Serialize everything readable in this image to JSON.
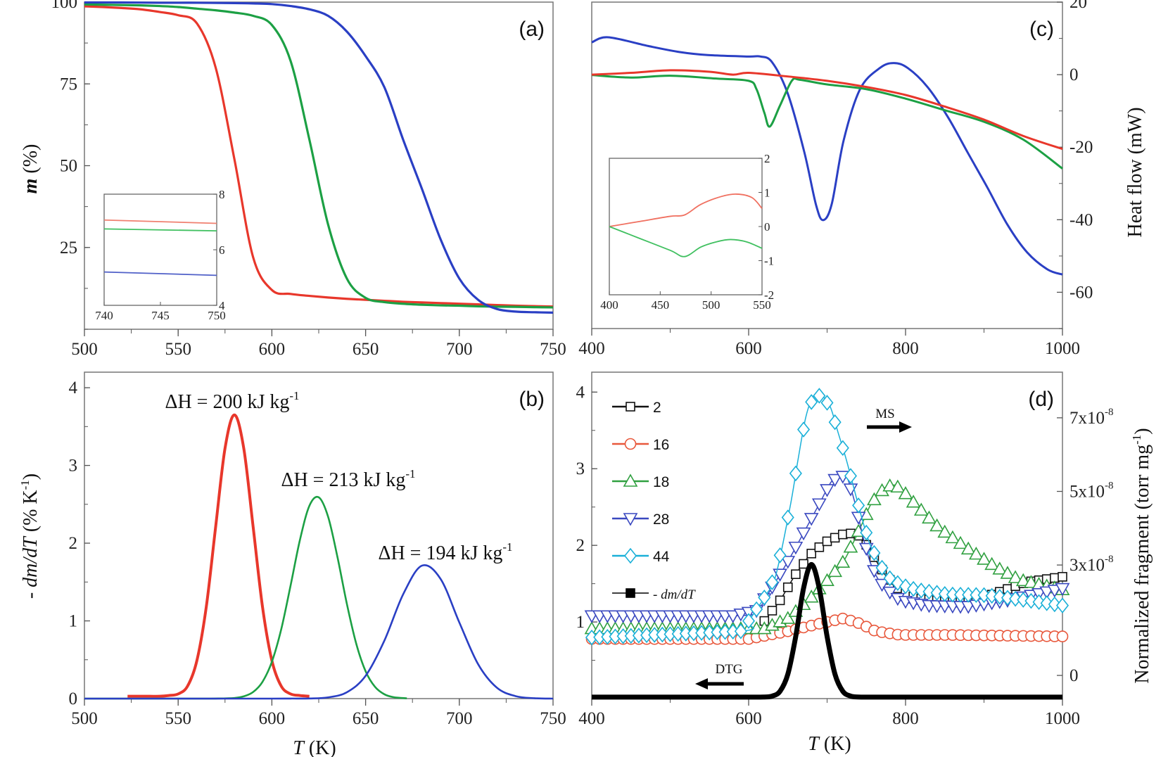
{
  "chart_data": [
    {
      "panel": "(a)",
      "type": "line",
      "ylabel": {
        "italic": "m",
        "rest": " (%)"
      },
      "xlim": [
        500,
        750
      ],
      "ylim": [
        0,
        100
      ],
      "xticks": [
        500,
        550,
        600,
        650,
        700,
        750
      ],
      "yticks": [
        25,
        50,
        75,
        100
      ],
      "series": [
        {
          "color": "#e8372b",
          "x": [
            500,
            510,
            520,
            530,
            540,
            550,
            560,
            570,
            580,
            590,
            600,
            610,
            620,
            630,
            640,
            650,
            660,
            670,
            680,
            690,
            700,
            710,
            720,
            730,
            740,
            750
          ],
          "y": [
            98.7,
            98.5,
            98.2,
            97.8,
            97,
            96,
            93.5,
            80,
            52,
            22,
            12,
            10.8,
            10.2,
            9.7,
            9.3,
            9.0,
            8.7,
            8.4,
            8.2,
            8.0,
            7.8,
            7.6,
            7.4,
            7.2,
            7.07,
            6.95
          ]
        },
        {
          "color": "#1ca044",
          "x": [
            500,
            510,
            520,
            530,
            540,
            550,
            560,
            570,
            580,
            590,
            600,
            610,
            620,
            630,
            640,
            650,
            660,
            670,
            680,
            690,
            700,
            710,
            720,
            730,
            740,
            750
          ],
          "y": [
            99.3,
            99.2,
            99.1,
            99,
            98.8,
            98.5,
            98,
            97.5,
            96.8,
            95.8,
            93,
            82,
            58,
            32,
            15.5,
            9.6,
            8.3,
            7.8,
            7.5,
            7.3,
            7.2,
            7.0,
            6.9,
            6.85,
            6.75,
            6.68
          ]
        },
        {
          "color": "#2a3fc4",
          "x": [
            500,
            520,
            540,
            560,
            580,
            590,
            600,
            610,
            620,
            630,
            640,
            650,
            660,
            670,
            680,
            690,
            700,
            710,
            720,
            730,
            740,
            750
          ],
          "y": [
            99.9,
            99.9,
            99.8,
            99.8,
            99.7,
            99.6,
            99.4,
            98.8,
            97.8,
            95.8,
            91,
            83.5,
            74,
            58,
            43,
            27.5,
            15.5,
            9,
            6.2,
            5.4,
            5.2,
            5.08
          ]
        }
      ],
      "inset": {
        "xlim": [
          740,
          750
        ],
        "ylim": [
          4,
          8
        ],
        "xticks": [
          740,
          745,
          750
        ],
        "yticks": [
          4,
          6,
          8
        ],
        "series": [
          {
            "color": "#f08070",
            "x": [
              740,
              750
            ],
            "y": [
              7.07,
              6.95
            ]
          },
          {
            "color": "#40c060",
            "x": [
              740,
              750
            ],
            "y": [
              6.75,
              6.68
            ]
          },
          {
            "color": "#5060c8",
            "x": [
              740,
              750
            ],
            "y": [
              5.2,
              5.08
            ]
          }
        ]
      }
    },
    {
      "panel": "(b)",
      "type": "line",
      "ylabel": {
        "pre": "- ",
        "italic": "dm/dT",
        "rest": " (% K",
        "sup": "-1",
        "post": ")"
      },
      "xlabel": {
        "italic": "T",
        "rest": " (K)"
      },
      "xlim": [
        500,
        750
      ],
      "ylim": [
        0,
        4.2
      ],
      "xticks": [
        500,
        550,
        600,
        650,
        700,
        750
      ],
      "yticks": [
        0,
        1,
        2,
        3,
        4
      ],
      "series": [
        {
          "color": "#e8372b",
          "x": [
            523,
            530,
            535,
            540,
            545,
            550,
            555,
            560,
            565,
            570,
            575,
            580,
            585,
            590,
            595,
            600,
            605,
            610,
            615,
            620
          ],
          "y": [
            0.03,
            0.03,
            0.03,
            0.03,
            0.04,
            0.06,
            0.16,
            0.49,
            1.18,
            2.21,
            3.22,
            3.65,
            3.22,
            2.21,
            1.18,
            0.49,
            0.16,
            0.06,
            0.04,
            0.03
          ]
        },
        {
          "color": "#1ca044",
          "x": [
            500,
            540,
            560,
            570,
            580,
            585,
            590,
            595,
            600,
            605,
            610,
            615,
            620,
            625,
            630,
            635,
            640,
            645,
            650,
            655,
            660,
            665,
            672
          ],
          "y": [
            0,
            0,
            0,
            0.001,
            0.008,
            0.029,
            0.085,
            0.216,
            0.474,
            0.893,
            1.457,
            2.045,
            2.48,
            2.59,
            2.34,
            1.82,
            1.22,
            0.707,
            0.352,
            0.152,
            0.056,
            0.018,
            0.004
          ]
        },
        {
          "color": "#2a3fc4",
          "x": [
            500,
            580,
            600,
            610,
            620,
            630,
            640,
            650,
            660,
            670,
            680,
            690,
            700,
            710,
            720,
            730,
            740,
            750
          ],
          "y": [
            0,
            0,
            0,
            0.001,
            0.002,
            0.016,
            0.082,
            0.293,
            0.745,
            1.34,
            1.71,
            1.54,
            0.98,
            0.444,
            0.141,
            0.032,
            0.005,
            0
          ]
        }
      ],
      "annotations": [
        {
          "text": "ΔH = 200 kJ kg",
          "sup": "-1"
        },
        {
          "text": "ΔH = 213 kJ kg",
          "sup": "-1"
        },
        {
          "text": "ΔH = 194 kJ kg",
          "sup": "-1"
        }
      ]
    },
    {
      "panel": "(c)",
      "type": "line",
      "ylabel_right": "Heat flow (mW)",
      "xlim": [
        400,
        1000
      ],
      "ylim": [
        -70,
        20
      ],
      "xticks": [
        400,
        600,
        800,
        1000
      ],
      "yticks_right": [
        20,
        0,
        -20,
        -40,
        -60
      ],
      "series": [
        {
          "color": "#2a3fc4",
          "x": [
            400,
            421,
            472,
            513,
            548,
            599,
            615,
            630,
            650,
            671,
            686,
            695,
            706,
            721,
            742,
            767,
            785,
            803,
            828,
            854,
            879,
            904,
            930,
            955,
            981,
            1000
          ],
          "y": [
            8.9,
            10.3,
            7.9,
            6.2,
            5.4,
            5.0,
            5.0,
            3.4,
            -5.3,
            -21.4,
            -36,
            -40.1,
            -35.6,
            -18.2,
            -4,
            1.8,
            3.2,
            1.8,
            -3.4,
            -11.7,
            -21.4,
            -31,
            -41.4,
            -49,
            -53.7,
            -55.1
          ]
        },
        {
          "color": "#1ca044",
          "x": [
            400,
            450,
            500,
            560,
            600,
            610,
            620,
            627,
            640,
            655,
            665,
            700,
            750,
            800,
            850,
            900,
            950,
            1000
          ],
          "y": [
            -0.1,
            -0.8,
            -0.3,
            -1.1,
            -1.7,
            -4,
            -10.5,
            -14.3,
            -8.5,
            -1.7,
            -1.4,
            -2.7,
            -4,
            -6.6,
            -9.8,
            -13,
            -17.9,
            -25.9
          ]
        },
        {
          "color": "#e8372b",
          "x": [
            400,
            450,
            500,
            550,
            580,
            600,
            650,
            700,
            750,
            800,
            850,
            900,
            950,
            1000
          ],
          "y": [
            0,
            0.5,
            1.2,
            0.8,
            0,
            0.5,
            -0.5,
            -1.7,
            -3.4,
            -5.6,
            -8.8,
            -12.4,
            -16.9,
            -20.5
          ]
        }
      ],
      "inset": {
        "xlim": [
          400,
          550
        ],
        "ylim": [
          -2,
          2
        ],
        "xticks": [
          400,
          450,
          500,
          550
        ],
        "yticks": [
          -2,
          -1,
          0,
          1,
          2
        ],
        "series": [
          {
            "color": "#f07060",
            "x": [
              400,
              430,
              460,
              474,
              490,
              510,
              525,
              540,
              550
            ],
            "y": [
              0,
              0.15,
              0.3,
              0.34,
              0.65,
              0.88,
              0.95,
              0.85,
              0.53
            ]
          },
          {
            "color": "#40c060",
            "x": [
              400,
              430,
              460,
              474,
              490,
              505,
              519,
              535,
              550
            ],
            "y": [
              0,
              -0.35,
              -0.7,
              -0.88,
              -0.6,
              -0.45,
              -0.38,
              -0.45,
              -0.64
            ]
          }
        ]
      }
    },
    {
      "panel": "(d)",
      "type": "line",
      "xlabel": {
        "italic": "T",
        "rest": " (K)"
      },
      "ylabel_right": {
        "text": "Normalized fragment (torr mg",
        "sup": "-1",
        "post": ")"
      },
      "xlim": [
        400,
        1000
      ],
      "ylim_left": [
        0,
        4.26
      ],
      "ylim_right_x1e-8": [
        -0.63,
        8.24
      ],
      "xticks": [
        400,
        600,
        800,
        1000
      ],
      "yticks_left": [
        1,
        2,
        3,
        4
      ],
      "yticks_right": [
        {
          "value": 0,
          "label": "0",
          "sup": ""
        },
        {
          "value": 3,
          "label": "3x10",
          "sup": "-8"
        },
        {
          "value": 5,
          "label": "5x10",
          "sup": "-8"
        },
        {
          "value": 7,
          "label": "7x10",
          "sup": "-8"
        }
      ],
      "legend": {
        "placement": "top-left"
      },
      "series": [
        {
          "name": "2",
          "marker": "square",
          "color": "#111111",
          "axis": "right",
          "x": [
            620,
            640,
            660,
            681,
            701,
            721,
            737,
            752,
            767,
            787,
            813,
            854,
            904,
            955,
            1000
          ],
          "y": [
            1.48,
            2.04,
            2.75,
            3.34,
            3.66,
            3.84,
            3.87,
            3.5,
            2.96,
            2.4,
            2.11,
            2.0,
            2.15,
            2.54,
            2.68
          ]
        },
        {
          "name": "16",
          "marker": "circle",
          "color": "#e8583c",
          "axis": "right",
          "x": [
            400,
            600,
            650,
            691,
            721,
            742,
            762,
            793,
            854,
            1000
          ],
          "y": [
            0.99,
            0.99,
            1.2,
            1.41,
            1.55,
            1.41,
            1.2,
            1.1,
            1.1,
            1.06
          ]
        },
        {
          "name": "18",
          "marker": "triangle-up",
          "color": "#30a040",
          "axis": "right",
          "x": [
            400,
            620,
            650,
            676,
            701,
            721,
            742,
            757,
            772,
            782,
            793,
            813,
            843,
            879,
            914,
            945,
            1000
          ],
          "y": [
            1.27,
            1.27,
            1.55,
            2.04,
            2.6,
            3.1,
            4.0,
            4.7,
            5.07,
            5.17,
            5.1,
            4.64,
            4.0,
            3.45,
            2.96,
            2.6,
            2.33
          ]
        },
        {
          "name": "28",
          "marker": "triangle-down",
          "color": "#3a48c0",
          "axis": "right",
          "x": [
            400,
            580,
            610,
            630,
            650,
            670,
            691,
            706,
            719,
            726,
            737,
            747,
            757,
            772,
            793,
            828,
            879,
            930,
            1000
          ],
          "y": [
            1.62,
            1.62,
            1.76,
            2.4,
            3.1,
            3.87,
            4.7,
            5.28,
            5.42,
            5.35,
            4.57,
            3.66,
            2.96,
            2.4,
            2.04,
            1.9,
            1.87,
            2.04,
            2.36
          ]
        },
        {
          "name": "44",
          "marker": "diamond",
          "color": "#1ab0d8",
          "axis": "right",
          "x": [
            400,
            590,
            600,
            622,
            635,
            653,
            663,
            673,
            683,
            693,
            704,
            714,
            724,
            734,
            744,
            754,
            765,
            777,
            793,
            813,
            854,
            904,
            955,
            1000
          ],
          "y": [
            1.03,
            1.2,
            1.48,
            2.18,
            2.75,
            4.6,
            5.87,
            7.03,
            7.6,
            7.6,
            7.3,
            6.6,
            5.9,
            5.1,
            4.3,
            3.6,
            3.1,
            2.68,
            2.47,
            2.33,
            2.2,
            2.18,
            2.04,
            1.9
          ]
        },
        {
          "name": "- dm/dT",
          "marker": "filled-square",
          "color": "#000000",
          "axis": "left",
          "x": [
            400,
            500,
            600,
            620,
            630,
            640,
            650,
            660,
            670,
            680,
            690,
            700,
            710,
            720,
            730,
            740,
            760,
            800,
            900,
            1000
          ],
          "y": [
            0.02,
            0.02,
            0.02,
            0.021,
            0.033,
            0.096,
            0.32,
            0.81,
            1.44,
            1.75,
            1.44,
            0.81,
            0.32,
            0.096,
            0.033,
            0.021,
            0.02,
            0.02,
            0.02,
            0.02
          ]
        }
      ],
      "annotations": {
        "ms": "MS",
        "dtg": "DTG"
      }
    }
  ]
}
